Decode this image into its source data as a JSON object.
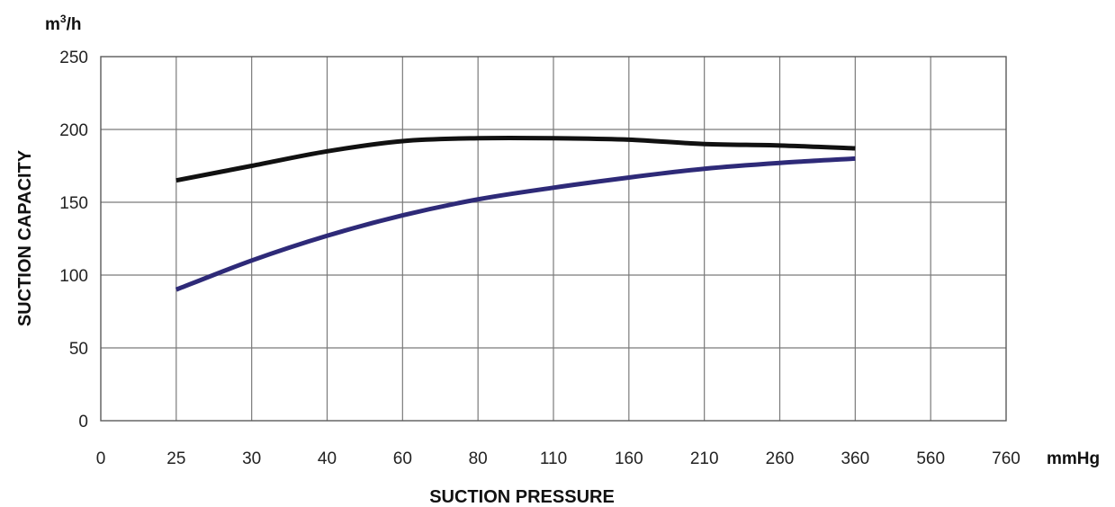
{
  "chart_data": {
    "type": "line",
    "xlabel": "SUCTION PRESSURE",
    "ylabel": "SUCTION CAPACITY",
    "x_unit": "mmHg",
    "y_unit_base": "m",
    "y_unit_sup": "3",
    "y_unit_tail": "/h",
    "categories": [
      "0",
      "25",
      "30",
      "40",
      "60",
      "80",
      "110",
      "160",
      "210",
      "260",
      "360",
      "560",
      "760"
    ],
    "yticks": [
      0,
      50,
      100,
      150,
      200,
      250
    ],
    "ylim": [
      0,
      250
    ],
    "grid": true,
    "series": [
      {
        "color": "#111111",
        "x": [
          "25",
          "30",
          "40",
          "60",
          "80",
          "110",
          "160",
          "210",
          "260",
          "360"
        ],
        "values": [
          165,
          175,
          185,
          192,
          194,
          194,
          193,
          190,
          189,
          187
        ]
      },
      {
        "color": "#2e2a78",
        "x": [
          "25",
          "30",
          "40",
          "60",
          "80",
          "110",
          "160",
          "210",
          "260",
          "360"
        ],
        "values": [
          90,
          110,
          127,
          141,
          152,
          160,
          167,
          173,
          177,
          180
        ]
      }
    ]
  }
}
